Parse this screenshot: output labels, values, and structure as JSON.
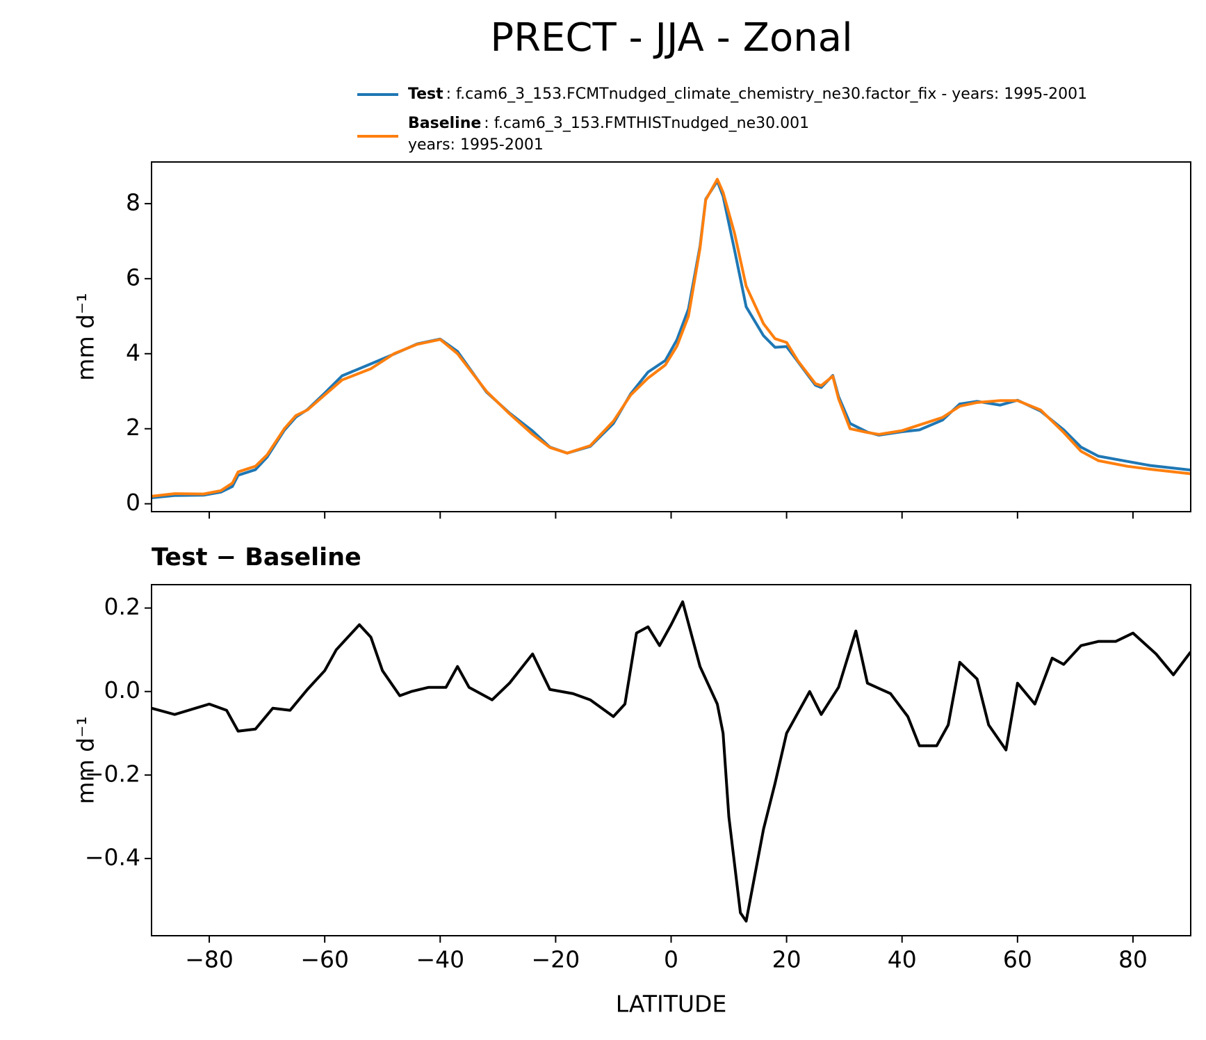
{
  "title": "PRECT - JJA - Zonal",
  "chart_data": [
    {
      "type": "line",
      "ylabel": "mm d⁻¹",
      "x": [
        -90,
        -86,
        -81,
        -78,
        -76,
        -75,
        -72,
        -70,
        -67,
        -65,
        -63,
        -60,
        -57,
        -52,
        -48,
        -44,
        -40,
        -37,
        -32,
        -28,
        -24,
        -21,
        -18,
        -14,
        -10,
        -7,
        -4,
        -1,
        1,
        3,
        5,
        6,
        8,
        9,
        11,
        13,
        16,
        18,
        20,
        22,
        25,
        26,
        28,
        29,
        31,
        34,
        36,
        40,
        43,
        47,
        50,
        53,
        57,
        60,
        64,
        68,
        71,
        74,
        79,
        83,
        90
      ],
      "series": [
        {
          "name": "Test",
          "legend_text": [
            ": f.cam6_3_153.FCMTnudged_climate_chemistry_ne30.factor_fix - years: 1995-2001"
          ],
          "color": "#1f77b4",
          "values": [
            0.16,
            0.22,
            0.23,
            0.31,
            0.46,
            0.76,
            0.91,
            1.24,
            1.96,
            2.31,
            2.51,
            2.95,
            3.41,
            3.73,
            3.99,
            4.26,
            4.39,
            4.06,
            2.98,
            2.42,
            1.94,
            1.51,
            1.35,
            1.53,
            2.14,
            2.93,
            3.51,
            3.82,
            4.37,
            5.19,
            6.86,
            8.12,
            8.6,
            8.2,
            6.75,
            5.25,
            4.48,
            4.17,
            4.19,
            3.78,
            3.16,
            3.1,
            3.42,
            2.86,
            2.14,
            1.91,
            1.83,
            1.92,
            1.97,
            2.23,
            2.66,
            2.73,
            2.63,
            2.76,
            2.47,
            1.97,
            1.51,
            1.27,
            1.13,
            1.02,
            0.9
          ]
        },
        {
          "name": "Baseline",
          "legend_text": [
            ": f.cam6_3_153.FMTHISTnudged_ne30.001",
            "years: 1995-2001"
          ],
          "color": "#ff7f0e",
          "values": [
            0.2,
            0.27,
            0.26,
            0.35,
            0.55,
            0.85,
            1.0,
            1.3,
            2.0,
            2.35,
            2.5,
            2.9,
            3.3,
            3.6,
            4.0,
            4.25,
            4.38,
            4.0,
            3.0,
            2.4,
            1.85,
            1.5,
            1.35,
            1.55,
            2.2,
            2.9,
            3.35,
            3.7,
            4.2,
            5.0,
            6.8,
            8.1,
            8.65,
            8.3,
            7.2,
            5.8,
            4.8,
            4.4,
            4.3,
            3.8,
            3.2,
            3.15,
            3.4,
            2.8,
            2.0,
            1.9,
            1.85,
            1.95,
            2.1,
            2.3,
            2.6,
            2.7,
            2.75,
            2.75,
            2.5,
            1.9,
            1.4,
            1.15,
            1.0,
            0.92,
            0.8
          ]
        }
      ],
      "xlim": [
        -90,
        90
      ],
      "xticks": [
        -80,
        -60,
        -40,
        -20,
        0,
        20,
        40,
        60,
        80
      ],
      "ylim": [
        -0.21,
        9.11
      ],
      "yticks": [
        0,
        2,
        4,
        6,
        8
      ]
    },
    {
      "type": "line",
      "title": "Test − Baseline",
      "ylabel": "mm d⁻¹",
      "xlabel": "LATITUDE",
      "x": [
        -90,
        -86,
        -80,
        -77,
        -75,
        -72,
        -69,
        -66,
        -63,
        -60,
        -58,
        -56,
        -54,
        -52,
        -50,
        -47,
        -45,
        -42,
        -39,
        -37,
        -35,
        -31,
        -28,
        -24,
        -21,
        -17,
        -14,
        -10,
        -8,
        -6,
        -4,
        -2,
        0,
        2,
        5,
        8,
        9,
        10,
        12,
        13,
        16,
        18,
        20,
        24,
        26,
        29,
        32,
        34,
        38,
        41,
        43,
        46,
        48,
        50,
        53,
        55,
        58,
        60,
        63,
        66,
        68,
        71,
        74,
        77,
        80,
        84,
        87,
        90
      ],
      "series": [
        {
          "color": "#000000",
          "values": [
            -0.04,
            -0.055,
            -0.03,
            -0.045,
            -0.095,
            -0.09,
            -0.04,
            -0.045,
            0.005,
            0.05,
            0.1,
            0.13,
            0.16,
            0.13,
            0.05,
            -0.01,
            0,
            0.01,
            0.01,
            0.06,
            0.01,
            -0.02,
            0.02,
            0.09,
            0.005,
            -0.005,
            -0.02,
            -0.06,
            -0.03,
            0.14,
            0.155,
            0.11,
            0.16,
            0.215,
            0.06,
            -0.03,
            -0.1,
            -0.3,
            -0.53,
            -0.55,
            -0.33,
            -0.22,
            -0.1,
            0,
            -0.055,
            0.01,
            0.145,
            0.02,
            -0.005,
            -0.06,
            -0.13,
            -0.13,
            -0.08,
            0.07,
            0.03,
            -0.08,
            -0.14,
            0.02,
            -0.03,
            0.08,
            0.065,
            0.11,
            0.12,
            0.12,
            0.14,
            0.09,
            0.04,
            0.095
          ]
        }
      ],
      "xlim": [
        -90,
        90
      ],
      "xticks": [
        {
          "value": -80,
          "label": "−80"
        },
        {
          "value": -60,
          "label": "−60"
        },
        {
          "value": -40,
          "label": "−40"
        },
        {
          "value": -20,
          "label": "−20"
        },
        0,
        20,
        40,
        60,
        80
      ],
      "ylim": [
        -0.585,
        0.256
      ],
      "yticks": [
        {
          "value": -0.4,
          "label": "−0.4"
        },
        {
          "value": -0.2,
          "label": "−0.2"
        },
        {
          "value": 0,
          "label": "0.0"
        },
        0.2
      ]
    }
  ]
}
